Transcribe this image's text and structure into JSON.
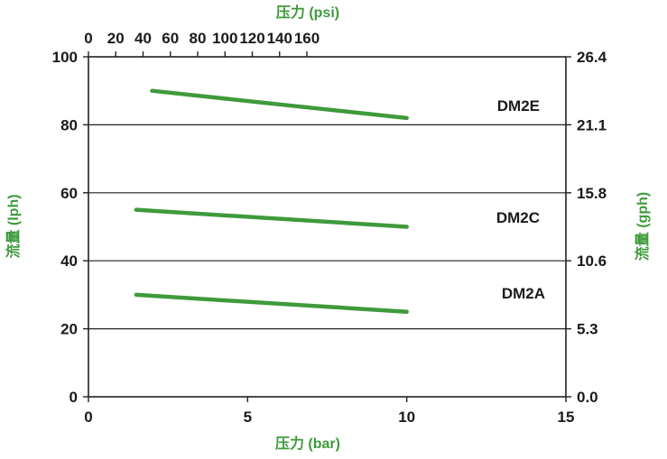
{
  "chart_data": {
    "type": "line",
    "accent_color": "#3f9a3c",
    "axis_title_color": "#3f9a3c",
    "grid": true,
    "x_bottom": {
      "label": "压力 (bar)",
      "range": [
        0,
        15
      ],
      "ticks": [
        "0",
        "5",
        "10",
        "15"
      ]
    },
    "x_top": {
      "label": "压力 (psi)",
      "ticks": [
        "0",
        "20",
        "40",
        "60",
        "80",
        "100",
        "120",
        "140",
        "160"
      ]
    },
    "y_left": {
      "label": "流量 (lph)",
      "range": [
        0,
        100
      ],
      "ticks": [
        "0",
        "20",
        "40",
        "60",
        "80",
        "100"
      ]
    },
    "y_right": {
      "label": "流量 (gph)",
      "ticks": [
        "0.0",
        "5.3",
        "10.6",
        "15.8",
        "21.1",
        "26.4"
      ]
    },
    "series": [
      {
        "name": "DM2E",
        "x": [
          2,
          10
        ],
        "y": [
          90,
          82
        ]
      },
      {
        "name": "DM2C",
        "x": [
          1.5,
          10
        ],
        "y": [
          55,
          50
        ]
      },
      {
        "name": "DM2A",
        "x": [
          1.5,
          10
        ],
        "y": [
          30,
          25
        ]
      }
    ]
  }
}
